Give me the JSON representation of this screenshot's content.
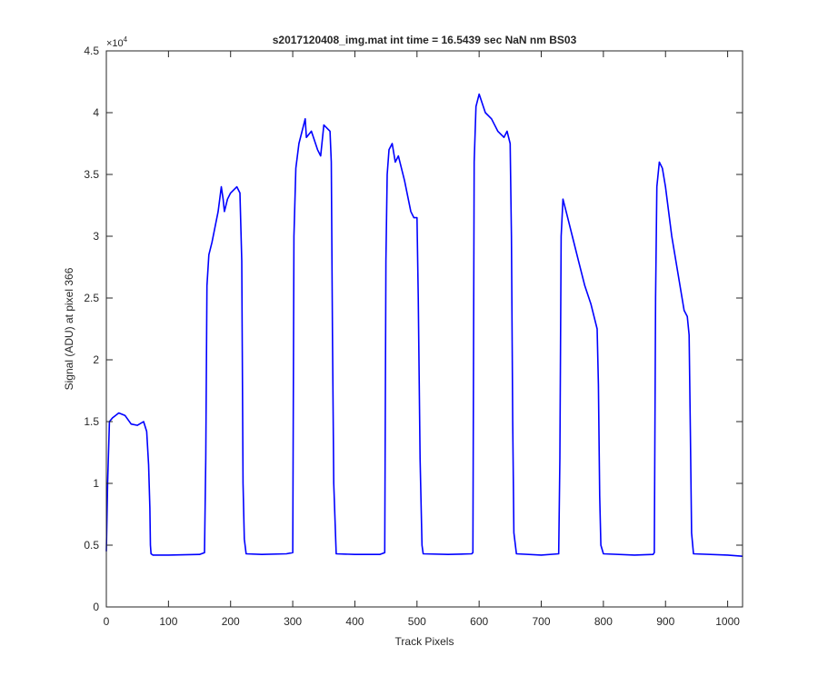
{
  "chart_data": {
    "type": "line",
    "title": "s2017120408_img.mat int time = 16.5439 sec  NaN nm BS03",
    "xlabel": "Track Pixels",
    "ylabel": "Signal (ADU) at pixel 366",
    "xlim": [
      0,
      1024
    ],
    "ylim": [
      0,
      45000
    ],
    "xticks": [
      0,
      100,
      200,
      300,
      400,
      500,
      600,
      700,
      800,
      900,
      1000
    ],
    "xtick_labels": [
      "0",
      "100",
      "200",
      "300",
      "400",
      "500",
      "600",
      "700",
      "800",
      "900",
      "1000"
    ],
    "yticks": [
      0,
      5000,
      10000,
      15000,
      20000,
      25000,
      30000,
      35000,
      40000,
      45000
    ],
    "ytick_labels": [
      "0",
      "0.5",
      "1",
      "1.5",
      "2",
      "2.5",
      "3",
      "3.5",
      "4",
      "4.5"
    ],
    "y_exponent_label": "×10",
    "y_exponent_power": "4",
    "grid": false,
    "line_color": "#0000ff",
    "series": [
      {
        "x": [
          0,
          2,
          5,
          10,
          20,
          30,
          40,
          50,
          60,
          65,
          68,
          70,
          71,
          72,
          75,
          100,
          150,
          158,
          160,
          162,
          165,
          170,
          180,
          185,
          188,
          190,
          195,
          200,
          210,
          215,
          218,
          220,
          222,
          225,
          250,
          290,
          300,
          302,
          305,
          310,
          320,
          322,
          330,
          340,
          345,
          350,
          360,
          362,
          364,
          366,
          370,
          400,
          440,
          448,
          450,
          452,
          455,
          460,
          465,
          470,
          480,
          490,
          495,
          500,
          502,
          505,
          508,
          510,
          550,
          588,
          590,
          592,
          595,
          600,
          610,
          620,
          630,
          640,
          645,
          650,
          652,
          654,
          656,
          660,
          700,
          728,
          730,
          732,
          735,
          740,
          750,
          760,
          770,
          780,
          790,
          792,
          794,
          796,
          800,
          850,
          880,
          882,
          884,
          886,
          890,
          895,
          900,
          910,
          920,
          930,
          935,
          938,
          940,
          942,
          945,
          1000,
          1024
        ],
        "y": [
          4500,
          10000,
          15000,
          15300,
          15700,
          15500,
          14800,
          14700,
          15000,
          14200,
          11500,
          8000,
          5000,
          4300,
          4200,
          4200,
          4250,
          4400,
          12000,
          26000,
          28500,
          29500,
          32000,
          34000,
          33000,
          32000,
          33000,
          33500,
          34000,
          33500,
          28000,
          10000,
          5500,
          4300,
          4250,
          4300,
          4400,
          30000,
          35500,
          37500,
          39500,
          38000,
          38500,
          37000,
          36500,
          39000,
          38500,
          36000,
          22000,
          10000,
          4300,
          4250,
          4250,
          4400,
          28000,
          35000,
          37000,
          37500,
          36000,
          36500,
          34500,
          32000,
          31500,
          31500,
          25000,
          12000,
          5000,
          4300,
          4250,
          4300,
          4400,
          36000,
          40500,
          41500,
          40000,
          39500,
          38500,
          38000,
          38500,
          37500,
          30000,
          15000,
          6000,
          4300,
          4200,
          4300,
          12000,
          30000,
          33000,
          32000,
          30000,
          28000,
          26000,
          24500,
          22500,
          18000,
          9000,
          5000,
          4300,
          4200,
          4250,
          4400,
          25000,
          34000,
          36000,
          35500,
          34000,
          30000,
          27000,
          24000,
          23500,
          22000,
          14000,
          6000,
          4300,
          4200,
          4100
        ]
      }
    ]
  }
}
